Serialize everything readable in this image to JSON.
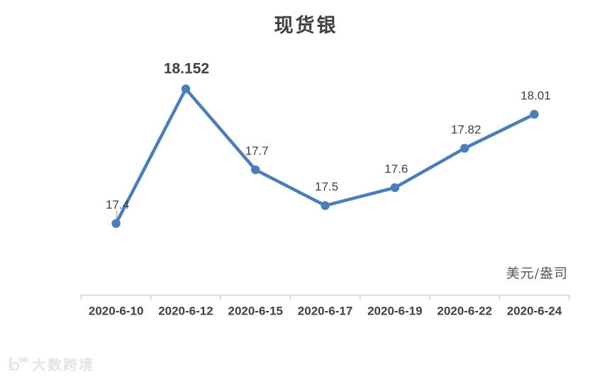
{
  "title": "现货银",
  "unit_label": "美元/盎司",
  "watermark": {
    "text": "大数跨境"
  },
  "chart_data": {
    "type": "line",
    "title": "现货银",
    "categories": [
      "2020-6-10",
      "2020-6-12",
      "2020-6-15",
      "2020-6-17",
      "2020-6-19",
      "2020-6-22",
      "2020-6-24"
    ],
    "series": [
      {
        "name": "现货银",
        "values": [
          17.4,
          18.152,
          17.7,
          17.5,
          17.6,
          17.82,
          18.01
        ]
      }
    ],
    "data_labels": [
      "17.4",
      "18.152",
      "17.7",
      "17.5",
      "17.6",
      "17.82",
      "18.01"
    ],
    "emphasized_label_index": 1,
    "xlabel": "",
    "ylabel": "美元/盎司",
    "ylim": [
      17.0,
      18.4
    ],
    "grid": false,
    "legend": "none",
    "line_color": "#4a7ebb",
    "marker_color": "#4a7ebb",
    "axis_color": "#d6d6d6",
    "label_color": "#3f3f3f",
    "leader_line_color": "#b3b3b3"
  }
}
